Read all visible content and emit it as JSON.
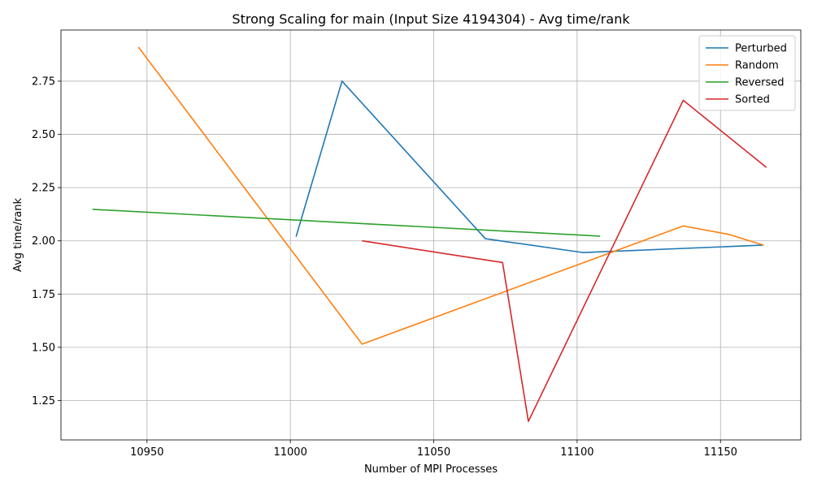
{
  "chart_data": {
    "type": "line",
    "title": "Strong Scaling for main (Input Size 4194304) - Avg time/rank",
    "xlabel": "Number of MPI Processes",
    "ylabel": "Avg time/rank",
    "xlim": [
      10920,
      11178
    ],
    "ylim": [
      1.065,
      2.99
    ],
    "xticks": [
      10950,
      11000,
      11050,
      11100,
      11150
    ],
    "xtick_labels": [
      "10950",
      "11000",
      "11050",
      "11100",
      "11150"
    ],
    "yticks": [
      1.25,
      1.5,
      1.75,
      2.0,
      2.25,
      2.5,
      2.75
    ],
    "ytick_labels": [
      "1.25",
      "1.50",
      "1.75",
      "2.00",
      "2.25",
      "2.50",
      "2.75"
    ],
    "grid": true,
    "legend_position": "top-right",
    "series": [
      {
        "name": "Perturbed",
        "color": "#1f77b4",
        "x": [
          11002,
          11018,
          11068,
          11102,
          11165
        ],
        "y": [
          2.02,
          2.75,
          2.01,
          1.945,
          1.98
        ]
      },
      {
        "name": "Random",
        "color": "#ff7f0e",
        "x": [
          10947,
          11025,
          11137,
          11153,
          11165
        ],
        "y": [
          2.91,
          1.515,
          2.07,
          2.03,
          1.98
        ]
      },
      {
        "name": "Reversed",
        "color": "#2ca02c",
        "x": [
          10931,
          11108
        ],
        "y": [
          2.148,
          2.022
        ]
      },
      {
        "name": "Sorted",
        "color": "#d62728",
        "x": [
          11025,
          11074,
          11083,
          11137,
          11166
        ],
        "y": [
          2.0,
          1.898,
          1.152,
          2.66,
          2.345
        ]
      }
    ]
  }
}
